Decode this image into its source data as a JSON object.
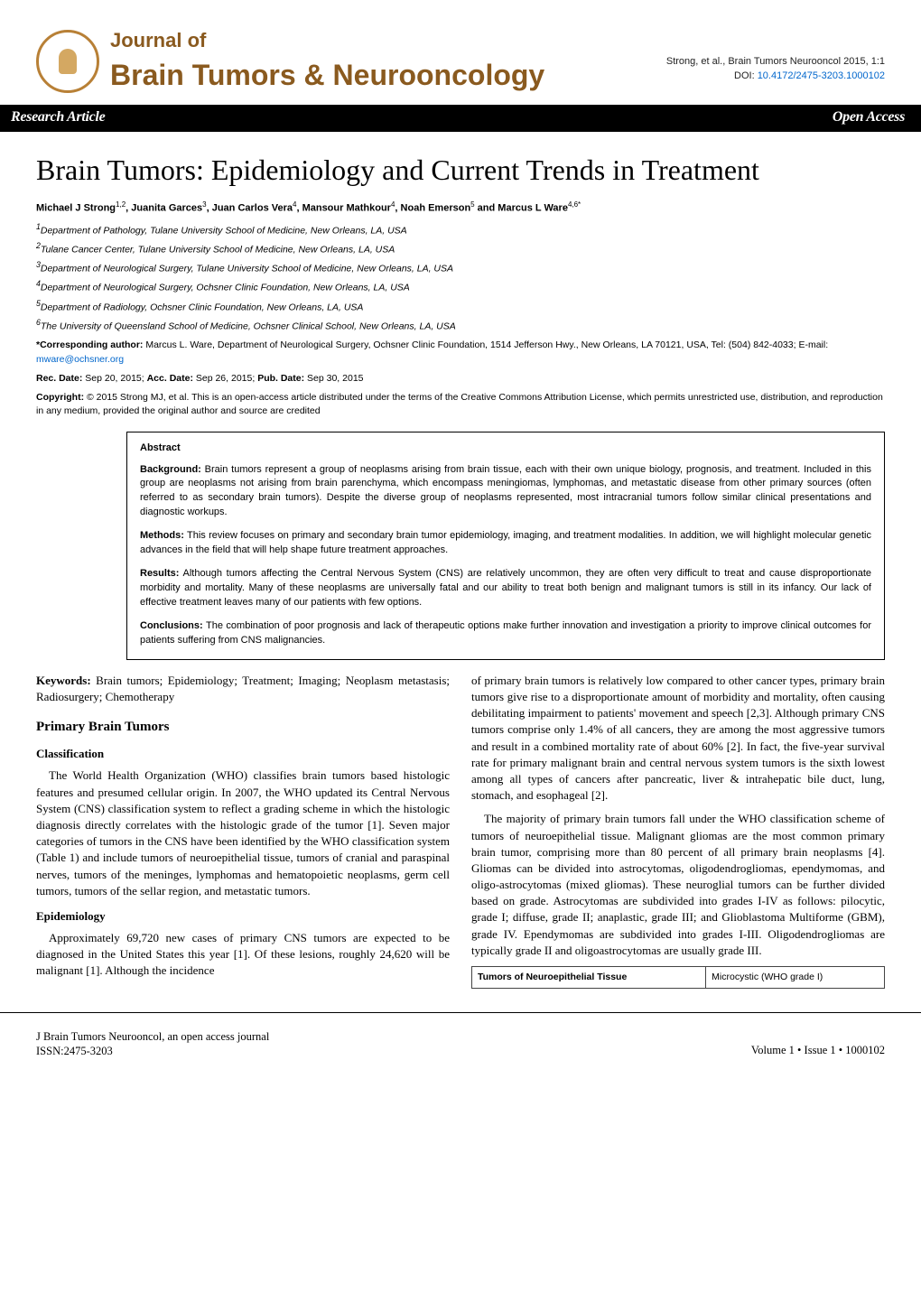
{
  "masthead": {
    "journal_of": "Journal of",
    "journal_title": "Brain Tumors & Neurooncology",
    "citation": "Strong, et al., Brain Tumors Neurooncol 2015, 1:1",
    "doi_label": "DOI: ",
    "doi": "10.4172/2475-3203.1000102"
  },
  "bar": {
    "left": "Research Article",
    "right": "Open Access"
  },
  "paper": {
    "title": "Brain Tumors: Epidemiology and Current Trends in Treatment",
    "authors_html": "Michael J Strong<sup>1,2</sup>, Juanita Garces<sup>3</sup>, Juan Carlos Vera<sup>4</sup>, Mansour Mathkour<sup>4</sup>, Noah Emerson<sup>5</sup> and Marcus L Ware<sup>4,6*</sup>",
    "affiliations": [
      "1Department of Pathology, Tulane University School of Medicine, New Orleans, LA, USA",
      "2Tulane Cancer Center, Tulane University School of Medicine, New Orleans, LA, USA",
      "3Department of Neurological Surgery, Tulane University School of Medicine, New Orleans, LA, USA",
      "4Department of Neurological Surgery, Ochsner Clinic Foundation, New Orleans, LA, USA",
      "5Department of Radiology, Ochsner Clinic Foundation, New Orleans, LA, USA",
      "6The University of Queensland School of Medicine, Ochsner Clinical School, New Orleans, LA, USA"
    ],
    "corresponding_label": "*Corresponding author:",
    "corresponding_text": " Marcus L. Ware, Department of Neurological Surgery, Ochsner Clinic Foundation, 1514 Jefferson Hwy., New Orleans, LA 70121, USA, Tel: (504) 842-4033; E-mail: ",
    "corresponding_email": "mware@ochsner.org",
    "dates_rec_label": "Rec. Date:",
    "dates_rec": " Sep 20, 2015; ",
    "dates_acc_label": "Acc. Date:",
    "dates_acc": " Sep 26, 2015; ",
    "dates_pub_label": "Pub. Date:",
    "dates_pub": " Sep 30, 2015",
    "copyright_label": "Copyright:",
    "copyright_text": " © 2015 Strong MJ, et al. This is an open-access article distributed under the terms of the Creative Commons Attribution License, which permits unrestricted use, distribution, and reproduction in any medium, provided the original author and source are credited"
  },
  "abstract": {
    "heading": "Abstract",
    "bg_label": "Background:",
    "bg": " Brain tumors represent a group of neoplasms arising from brain tissue, each with their own unique biology, prognosis, and treatment. Included in this group are neoplasms not arising from brain parenchyma, which encompass meningiomas, lymphomas, and metastatic disease from other primary sources (often referred to as secondary brain tumors). Despite the diverse group of neoplasms represented, most intracranial tumors follow similar clinical presentations and diagnostic workups.",
    "methods_label": "Methods:",
    "methods": " This review focuses on primary and secondary brain tumor epidemiology, imaging, and treatment modalities. In addition, we will highlight molecular genetic advances in the field that will help shape future treatment approaches.",
    "results_label": "Results:",
    "results": " Although tumors affecting the Central Nervous System (CNS) are relatively uncommon, they are often very difficult to treat and cause disproportionate morbidity and mortality. Many of these neoplasms are universally fatal and our ability to treat both benign and malignant tumors is still in its infancy. Our lack of effective treatment leaves many of our patients with few options.",
    "concl_label": "Conclusions:",
    "concl": " The combination of poor prognosis and lack of therapeutic options make further innovation and investigation a priority to improve clinical outcomes for patients suffering from CNS malignancies."
  },
  "body": {
    "keywords_label": "Keywords:",
    "keywords": " Brain tumors; Epidemiology; Treatment; Imaging; Neoplasm metastasis; Radiosurgery; Chemotherapy",
    "h_primary": "Primary Brain Tumors",
    "h_class": "Classification",
    "p_class": "The World Health Organization (WHO) classifies brain tumors based histologic features and presumed cellular origin. In 2007, the WHO updated its Central Nervous System (CNS) classification system to reflect a grading scheme in which the histologic diagnosis directly correlates with the histologic grade of the tumor [1]. Seven major categories of tumors in the CNS have been identified by the WHO classification system (Table 1) and include tumors of neuroepithelial tissue, tumors of cranial and paraspinal nerves, tumors of the meninges, lymphomas and hematopoietic neoplasms, germ cell tumors, tumors of the sellar region, and metastatic tumors.",
    "h_epi": "Epidemiology",
    "p_epi": "Approximately 69,720 new cases of primary CNS tumors are expected to be diagnosed in the United States this year [1]. Of these lesions, roughly 24,620 will be malignant [1]. Although the incidence",
    "p_r1": "of primary brain tumors is relatively low compared to other cancer types, primary brain tumors give rise to a disproportionate amount of morbidity and mortality, often causing debilitating impairment to patients' movement and speech [2,3]. Although primary CNS tumors comprise only 1.4% of all cancers, they are among the most aggressive tumors and result in a combined mortality rate of about 60% [2]. In fact, the five-year survival rate for primary malignant brain and central nervous system tumors is the sixth lowest among all types of cancers after pancreatic, liver & intrahepatic bile duct, lung, stomach, and esophageal [2].",
    "p_r2": "The majority of primary brain tumors fall under the WHO classification scheme of tumors of neuroepithelial tissue. Malignant gliomas are the most common primary brain tumor, comprising more than 80 percent of all primary brain neoplasms [4]. Gliomas can be divided into astrocytomas, oligodendrogliomas, ependymomas, and oligo-astrocytomas (mixed gliomas). These neuroglial tumors can be further divided based on grade. Astrocytomas are subdivided into grades I-IV as follows: pilocytic, grade I; diffuse, grade II; anaplastic, grade III; and Glioblastoma Multiforme (GBM), grade IV. Ependymomas are subdivided into grades I-III. Oligodendrogliomas are typically grade II and oligoastrocytomas are usually grade III.",
    "table": {
      "c1": "Tumors of Neuroepithelial Tissue",
      "c2": "Microcystic (WHO grade I)"
    }
  },
  "footer": {
    "left1": "J Brain Tumors Neurooncol, an open access journal",
    "left2": "ISSN:2475-3203",
    "right": "Volume 1 • Issue 1 • 1000102"
  },
  "colors": {
    "brand": "#8a5a1f",
    "link": "#0066cc"
  }
}
